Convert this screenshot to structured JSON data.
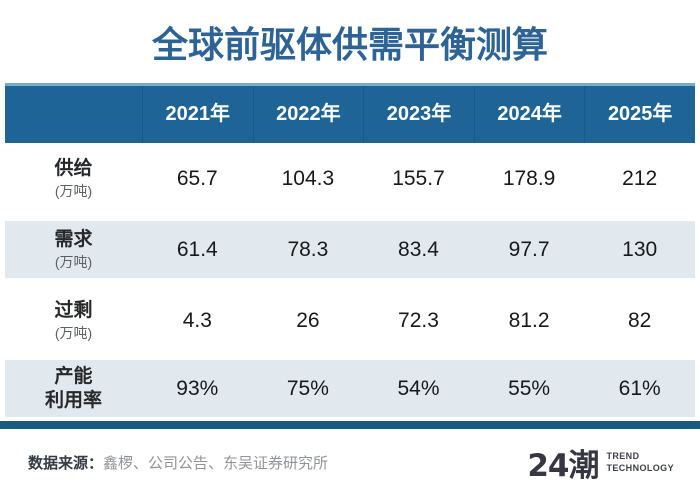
{
  "title": "全球前驱体供需平衡测算",
  "colors": {
    "title_blue": "#2e6396",
    "header_blue": "#1e6496",
    "header_top_line": "#74aecb",
    "shaded_row": "#e1e9ef",
    "bottom_bar": "#175b7e"
  },
  "table": {
    "columns": [
      "2021年",
      "2022年",
      "2023年",
      "2024年",
      "2025年"
    ],
    "rows": [
      {
        "label": "供给",
        "label_line2": "",
        "sublabel": "(万吨)",
        "values": [
          "65.7",
          "104.3",
          "155.7",
          "178.9",
          "212"
        ]
      },
      {
        "label": "需求",
        "label_line2": "",
        "sublabel": "(万吨)",
        "values": [
          "61.4",
          "78.3",
          "83.4",
          "97.7",
          "130"
        ]
      },
      {
        "label": "过剩",
        "label_line2": "",
        "sublabel": "(万吨)",
        "values": [
          "4.3",
          "26",
          "72.3",
          "81.2",
          "82"
        ]
      },
      {
        "label": "产能",
        "label_line2": "利用率",
        "sublabel": "",
        "values": [
          "93%",
          "75%",
          "54%",
          "55%",
          "61%"
        ]
      }
    ]
  },
  "footer": {
    "source_label": "数据来源：",
    "source_text": "鑫椤、公司公告、东吴证券研究所",
    "logo_text": "24潮",
    "tagline_line1": "TREND",
    "tagline_line2": "TECHNOLOGY"
  },
  "chart_data": {
    "type": "table",
    "title": "全球前驱体供需平衡测算",
    "categories": [
      "2021年",
      "2022年",
      "2023年",
      "2024年",
      "2025年"
    ],
    "series": [
      {
        "name": "供给(万吨)",
        "values": [
          65.7,
          104.3,
          155.7,
          178.9,
          212
        ]
      },
      {
        "name": "需求(万吨)",
        "values": [
          61.4,
          78.3,
          83.4,
          97.7,
          130
        ]
      },
      {
        "name": "过剩(万吨)",
        "values": [
          4.3,
          26,
          72.3,
          81.2,
          82
        ]
      },
      {
        "name": "产能利用率",
        "values": [
          "93%",
          "75%",
          "54%",
          "55%",
          "61%"
        ]
      }
    ],
    "source": "数据来源：鑫椤、公司公告、东吴证券研究所"
  }
}
